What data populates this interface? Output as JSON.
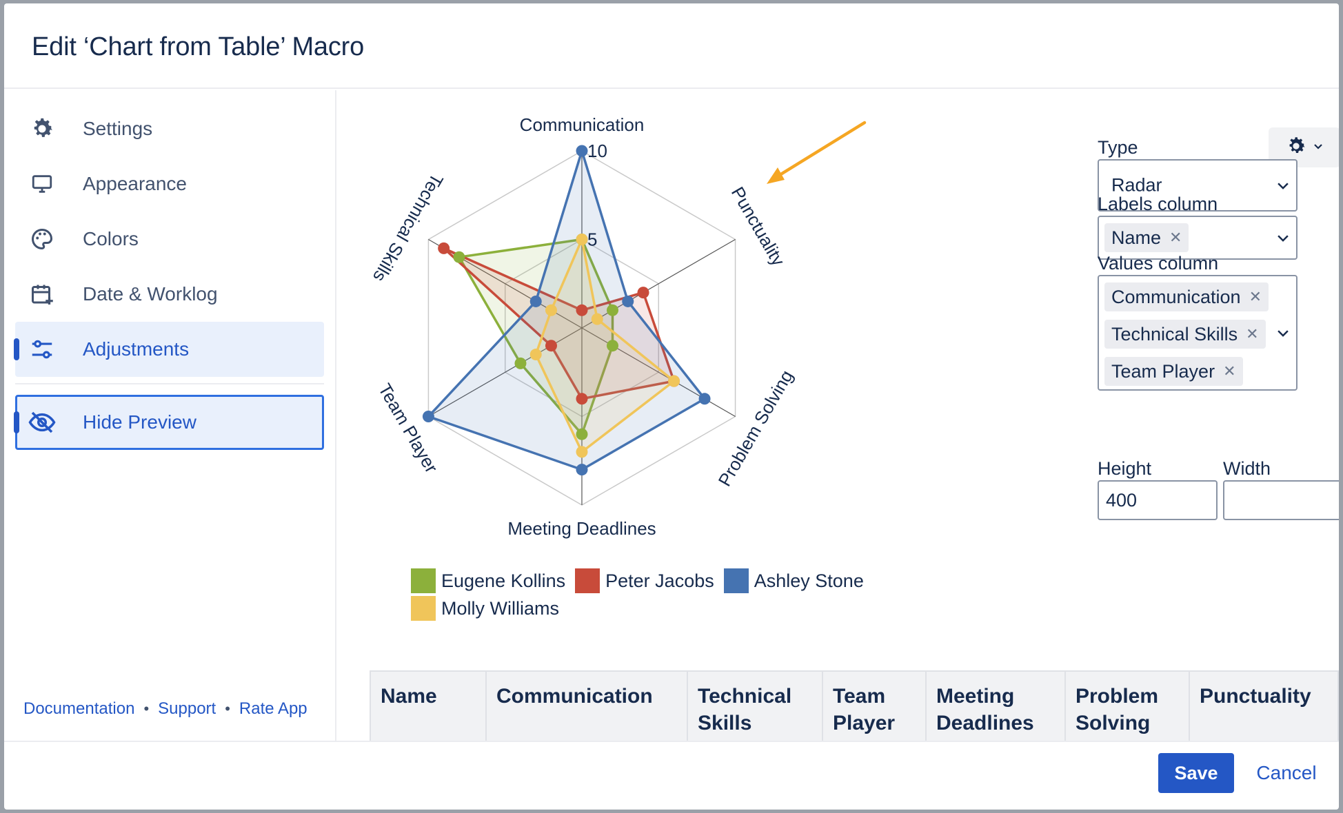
{
  "dialog": {
    "title": "Edit ‘Chart from Table’ Macro"
  },
  "sidebar": {
    "items": [
      {
        "label": "Settings",
        "icon": "gear-icon"
      },
      {
        "label": "Appearance",
        "icon": "monitor-icon"
      },
      {
        "label": "Colors",
        "icon": "palette-icon"
      },
      {
        "label": "Date & Worklog",
        "icon": "calendar-plus-icon"
      },
      {
        "label": "Adjustments",
        "icon": "sliders-icon",
        "active": true
      }
    ],
    "hide_preview": {
      "label": "Hide Preview",
      "icon": "eye-slash-icon"
    },
    "links": [
      "Documentation",
      "Support",
      "Rate App"
    ]
  },
  "settings_panel": {
    "type_label": "Type",
    "type_value": "Radar",
    "labels_column_label": "Labels column",
    "labels_column_tags": [
      "Name"
    ],
    "values_column_label": "Values column",
    "values_column_tags": [
      "Communication",
      "Technical Skills",
      "Team Player"
    ],
    "height_label": "Height",
    "height_value": "400",
    "width_label": "Width",
    "width_value": ""
  },
  "table": {
    "headers": [
      "Name",
      "Communication",
      "Technical Skills",
      "Team Player",
      "Meeting Deadlines",
      "Problem Solving",
      "Punctuality"
    ]
  },
  "footer": {
    "save_label": "Save",
    "cancel_label": "Cancel"
  },
  "colors": {
    "accent": "#2457c5",
    "arrow": "#f5a623"
  },
  "chart_data": {
    "type": "radar",
    "axes": [
      "Communication",
      "Punctuality",
      "Problem Solving",
      "Meeting Deadlines",
      "Team Player",
      "Technical Skills"
    ],
    "tick_labels": [
      "5",
      "10"
    ],
    "rlim": [
      0,
      10
    ],
    "series": [
      {
        "name": "Eugene Kollins",
        "color": "#8cb03b",
        "values": [
          5,
          2,
          2,
          6,
          4,
          8
        ]
      },
      {
        "name": "Peter Jacobs",
        "color": "#c84b3a",
        "values": [
          1,
          4,
          6,
          4,
          2,
          9
        ]
      },
      {
        "name": "Ashley Stone",
        "color": "#4573b1",
        "values": [
          10,
          3,
          8,
          8,
          10,
          3
        ]
      },
      {
        "name": "Molly Williams",
        "color": "#f0c55a",
        "values": [
          5,
          1,
          6,
          7,
          3,
          2
        ]
      }
    ],
    "legend_position": "bottom-left"
  }
}
